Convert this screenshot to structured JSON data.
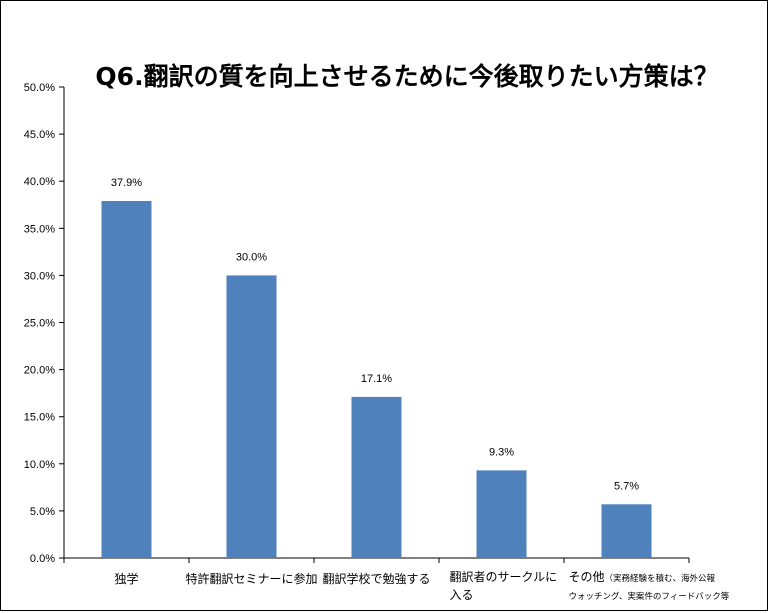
{
  "chart_data": {
    "type": "bar",
    "title": "Q6.翻訳の質を向上させるために今後取りたい方策は？",
    "xlabel": "",
    "ylabel": "",
    "ylim": [
      0,
      50
    ],
    "ytick_labels": [
      "0.0%",
      "5.0%",
      "10.0%",
      "15.0%",
      "20.0%",
      "25.0%",
      "30.0%",
      "35.0%",
      "40.0%",
      "45.0%",
      "50.0%"
    ],
    "categories": [
      {
        "lines": [
          "独学"
        ]
      },
      {
        "lines": [
          "特許翻訳セミナーに参加"
        ]
      },
      {
        "lines": [
          "翻訳学校で勉強する"
        ]
      },
      {
        "lines": [
          "翻訳者のサークルに",
          "入る"
        ]
      },
      {
        "lines": [
          "その他",
          "ウォッチング、実案件のフィードバック等"
        ],
        "suffix": "（実務経験を積む、海外公報"
      }
    ],
    "values": [
      37.9,
      30.0,
      17.1,
      9.3,
      5.7
    ],
    "data_labels": [
      "37.9%",
      "30.0%",
      "17.1%",
      "9.3%",
      "5.7%"
    ],
    "grid": false,
    "legend": "none",
    "colors": {
      "bar": "#4f81bd",
      "axis": "#000000",
      "text": "#000000"
    }
  }
}
